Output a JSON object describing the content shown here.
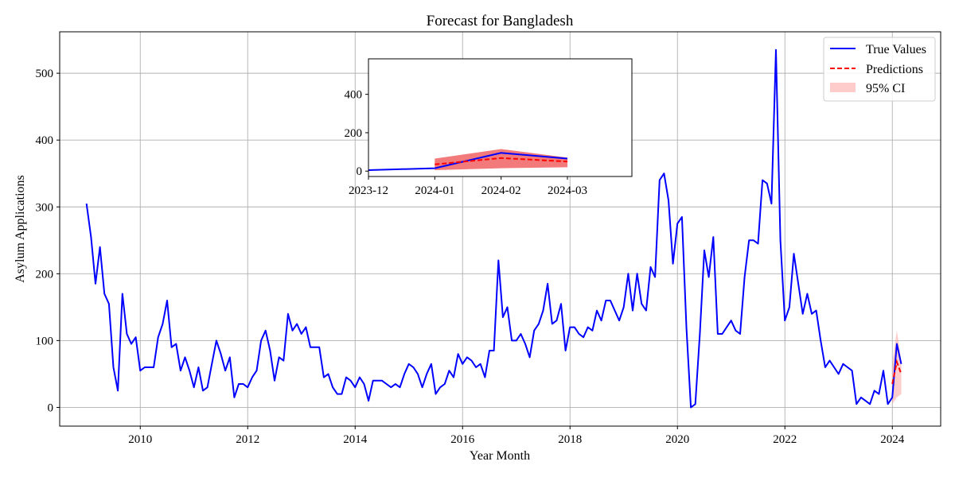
{
  "chart_data": {
    "type": "line",
    "title": "Forecast for Bangladesh",
    "xlabel": "Year Month",
    "ylabel": "Asylum Applications",
    "xlim": [
      2008.5,
      2024.9
    ],
    "ylim": [
      -28,
      562
    ],
    "x_ticks": [
      2010,
      2012,
      2014,
      2016,
      2018,
      2020,
      2022,
      2024
    ],
    "x_tick_labels": [
      "2010",
      "2012",
      "2014",
      "2016",
      "2018",
      "2020",
      "2022",
      "2024"
    ],
    "y_ticks": [
      0,
      100,
      200,
      300,
      400,
      500
    ],
    "y_tick_labels": [
      "0",
      "100",
      "200",
      "300",
      "400",
      "500"
    ],
    "grid": true,
    "legend_position": "top-right",
    "colors": {
      "true_values": "#0000ff",
      "predictions": "#ff0000",
      "ci": "#ff9999"
    },
    "series": [
      {
        "name": "True Values",
        "x_start": "2009-01",
        "frequency": "monthly",
        "values": [
          305,
          255,
          185,
          240,
          170,
          155,
          60,
          25,
          170,
          110,
          95,
          105,
          55,
          60,
          60,
          60,
          105,
          125,
          160,
          90,
          95,
          55,
          75,
          55,
          30,
          60,
          25,
          30,
          65,
          100,
          80,
          55,
          75,
          15,
          35,
          35,
          30,
          45,
          55,
          100,
          115,
          85,
          40,
          75,
          70,
          140,
          115,
          125,
          110,
          120,
          90,
          90,
          90,
          45,
          50,
          30,
          20,
          20,
          45,
          40,
          30,
          45,
          35,
          10,
          40,
          40,
          40,
          35,
          30,
          35,
          30,
          50,
          65,
          60,
          50,
          30,
          50,
          65,
          20,
          30,
          35,
          55,
          45,
          80,
          65,
          75,
          70,
          60,
          65,
          45,
          85,
          85,
          220,
          135,
          150,
          100,
          100,
          110,
          95,
          75,
          115,
          125,
          145,
          185,
          125,
          130,
          155,
          85,
          120,
          120,
          110,
          105,
          120,
          115,
          145,
          130,
          160,
          160,
          145,
          130,
          150,
          200,
          145,
          200,
          155,
          145,
          210,
          195,
          340,
          350,
          310,
          215,
          275,
          285,
          120,
          0,
          5,
          110,
          235,
          195,
          255,
          110,
          110,
          120,
          130,
          115,
          110,
          195,
          250,
          250,
          245,
          340,
          335,
          305,
          535,
          250,
          130,
          150,
          230,
          185,
          140,
          170,
          140,
          145,
          100,
          60,
          70,
          60,
          50,
          65,
          60,
          55,
          5,
          15,
          10,
          5,
          25,
          20,
          55,
          5,
          15,
          95,
          65
        ]
      },
      {
        "name": "Predictions",
        "x": [
          "2024-01",
          "2024-02",
          "2024-03"
        ],
        "values": [
          35,
          68,
          50
        ]
      },
      {
        "name": "95% CI",
        "x": [
          "2024-01",
          "2024-02",
          "2024-03"
        ],
        "lower": [
          5,
          15,
          20
        ],
        "upper": [
          65,
          115,
          70
        ]
      }
    ],
    "legend": [
      "True Values",
      "Predictions",
      "95% CI"
    ],
    "inset": {
      "x_tick_labels": [
        "2023-12",
        "2024-01",
        "2024-02",
        "2024-03"
      ],
      "y_ticks": [
        0,
        200,
        400
      ],
      "y_tick_labels": [
        "0",
        "200",
        "400"
      ],
      "ylim": [
        -28,
        585
      ],
      "true_values": {
        "x": [
          "2023-12",
          "2024-01",
          "2024-02",
          "2024-03"
        ],
        "values": [
          5,
          15,
          95,
          65
        ]
      },
      "predictions": {
        "x": [
          "2024-01",
          "2024-02",
          "2024-03"
        ],
        "values": [
          35,
          68,
          50
        ]
      },
      "ci": {
        "x": [
          "2024-01",
          "2024-02",
          "2024-03"
        ],
        "lower": [
          5,
          15,
          20
        ],
        "upper": [
          65,
          115,
          70
        ]
      }
    }
  }
}
